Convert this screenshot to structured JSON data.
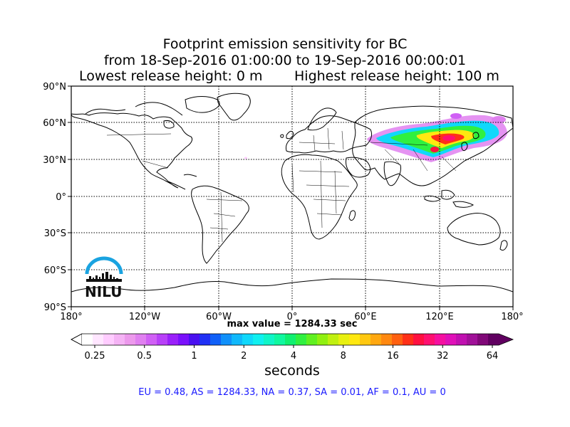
{
  "title": {
    "line1": "Footprint emission sensitivity for BC",
    "line2": "from 18-Sep-2016 01:00:00 to 19-Sep-2016 00:00:01",
    "line3_left": "Lowest release height: 0 m",
    "line3_right": "Highest release height: 100 m"
  },
  "map": {
    "lon_ticks": [
      "180°",
      "120°W",
      "60°W",
      "0°",
      "60°E",
      "120°E",
      "180°"
    ],
    "lat_ticks": [
      "90°N",
      "60°N",
      "30°N",
      "0°",
      "30°S",
      "60°S",
      "90°S"
    ],
    "grid": "dotted",
    "coastline_color": "#000000"
  },
  "max_value_label": "max value = 1284.33 sec",
  "colorbar": {
    "ticks": [
      "0.25",
      "0.5",
      "1",
      "2",
      "4",
      "8",
      "16",
      "32",
      "64"
    ],
    "label": "seconds",
    "colors": [
      "#ffffff",
      "#ffe6ff",
      "#ffccff",
      "#f5b3f5",
      "#ec99ec",
      "#e080f0",
      "#d060f5",
      "#b840f8",
      "#9a20fa",
      "#7a10fc",
      "#4a10f0",
      "#2030f5",
      "#1060f8",
      "#1090fa",
      "#10b8fb",
      "#10d8fb",
      "#10f0f0",
      "#10f5c8",
      "#10f8a0",
      "#10f070",
      "#30f040",
      "#60f020",
      "#90f010",
      "#c0f010",
      "#e8f010",
      "#ffe810",
      "#ffc810",
      "#ffa810",
      "#ff8810",
      "#ff6010",
      "#ff3018",
      "#ff1040",
      "#ff1070",
      "#f510a0",
      "#e010b8",
      "#c010b0",
      "#a01098",
      "#800878",
      "#600060"
    ]
  },
  "region_values": "EU = 0.48,  AS = 1284.33,  NA = 0.37,  SA = 0.01,  AF = 0.1,  AU = 0",
  "logo": {
    "text": "NILU",
    "arc_color": "#1aa3e0"
  }
}
